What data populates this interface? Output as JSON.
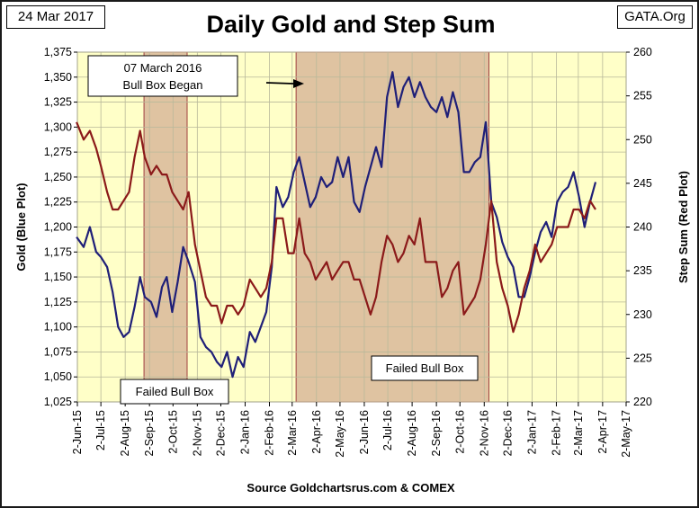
{
  "header": {
    "date": "24 Mar 2017",
    "site": "GATA.Org"
  },
  "chart_data": {
    "type": "line",
    "title": "Daily Gold and Step Sum",
    "source": "Source Goldchartsrus.com & COMEX",
    "xlabel": "",
    "ylabel_left": "Gold   (Blue Plot)",
    "ylabel_right": "Step Sum  (Red Plot)",
    "x_ticks": [
      "2-Jun-15",
      "2-Jul-15",
      "2-Aug-15",
      "2-Sep-15",
      "2-Oct-15",
      "2-Nov-15",
      "2-Dec-15",
      "2-Jan-16",
      "2-Feb-16",
      "2-Mar-16",
      "2-Apr-16",
      "2-May-16",
      "2-Jun-16",
      "2-Jul-16",
      "2-Aug-16",
      "2-Sep-16",
      "2-Oct-16",
      "2-Nov-16",
      "2-Dec-16",
      "2-Jan-17",
      "2-Feb-17",
      "2-Mar-17",
      "2-Apr-17",
      "2-May-17"
    ],
    "ylim_left": [
      1025,
      1375
    ],
    "left_ticks": [
      "1,025",
      "1,050",
      "1,075",
      "1,100",
      "1,125",
      "1,150",
      "1,175",
      "1,200",
      "1,225",
      "1,250",
      "1,275",
      "1,300",
      "1,325",
      "1,350",
      "1,375"
    ],
    "ylim_right": [
      220,
      260
    ],
    "right_ticks": [
      "220",
      "225",
      "230",
      "235",
      "240",
      "245",
      "250",
      "255",
      "260"
    ],
    "grid": true,
    "colors": {
      "plot_bg": "#ffffc8",
      "gold_line": "#1f1f78",
      "step_line": "#8b1a1a",
      "box_fill": "#d9b89a",
      "box_border": "#a04040",
      "grid": "#b8b89a"
    },
    "series": [
      {
        "name": "Gold",
        "axis": "left",
        "x": [
          "2015-06-01",
          "2015-06-10",
          "2015-06-18",
          "2015-06-26",
          "2015-07-02",
          "2015-07-10",
          "2015-07-17",
          "2015-07-24",
          "2015-07-31",
          "2015-08-07",
          "2015-08-14",
          "2015-08-21",
          "2015-08-27",
          "2015-09-04",
          "2015-09-11",
          "2015-09-18",
          "2015-09-24",
          "2015-10-01",
          "2015-10-08",
          "2015-10-15",
          "2015-10-22",
          "2015-10-30",
          "2015-11-06",
          "2015-11-13",
          "2015-11-20",
          "2015-11-27",
          "2015-12-03",
          "2015-12-10",
          "2015-12-17",
          "2015-12-24",
          "2015-12-31",
          "2016-01-08",
          "2016-01-15",
          "2016-01-22",
          "2016-01-29",
          "2016-02-05",
          "2016-02-11",
          "2016-02-19",
          "2016-02-26",
          "2016-03-04",
          "2016-03-11",
          "2016-03-18",
          "2016-03-25",
          "2016-04-01",
          "2016-04-08",
          "2016-04-15",
          "2016-04-22",
          "2016-04-29",
          "2016-05-06",
          "2016-05-13",
          "2016-05-20",
          "2016-05-27",
          "2016-06-03",
          "2016-06-10",
          "2016-06-17",
          "2016-06-24",
          "2016-07-01",
          "2016-07-08",
          "2016-07-15",
          "2016-07-22",
          "2016-07-29",
          "2016-08-05",
          "2016-08-12",
          "2016-08-19",
          "2016-08-26",
          "2016-09-02",
          "2016-09-09",
          "2016-09-16",
          "2016-09-23",
          "2016-09-30",
          "2016-10-07",
          "2016-10-14",
          "2016-10-21",
          "2016-10-28",
          "2016-11-04",
          "2016-11-11",
          "2016-11-18",
          "2016-11-25",
          "2016-12-02",
          "2016-12-09",
          "2016-12-16",
          "2016-12-23",
          "2016-12-30",
          "2017-01-06",
          "2017-01-13",
          "2017-01-20",
          "2017-01-27",
          "2017-02-03",
          "2017-02-10",
          "2017-02-17",
          "2017-02-24",
          "2017-03-03",
          "2017-03-10",
          "2017-03-17",
          "2017-03-24"
        ],
        "values": [
          1190,
          1180,
          1200,
          1175,
          1170,
          1160,
          1135,
          1100,
          1090,
          1095,
          1120,
          1150,
          1130,
          1125,
          1110,
          1140,
          1150,
          1115,
          1145,
          1180,
          1165,
          1145,
          1090,
          1080,
          1075,
          1065,
          1060,
          1075,
          1050,
          1070,
          1060,
          1095,
          1085,
          1100,
          1115,
          1160,
          1240,
          1220,
          1230,
          1255,
          1270,
          1245,
          1220,
          1230,
          1250,
          1240,
          1245,
          1270,
          1250,
          1270,
          1225,
          1215,
          1240,
          1260,
          1280,
          1260,
          1330,
          1355,
          1320,
          1340,
          1350,
          1330,
          1345,
          1330,
          1320,
          1315,
          1330,
          1310,
          1335,
          1315,
          1255,
          1255,
          1265,
          1270,
          1305,
          1225,
          1210,
          1185,
          1170,
          1160,
          1130,
          1130,
          1150,
          1175,
          1195,
          1205,
          1190,
          1225,
          1235,
          1240,
          1255,
          1230,
          1200,
          1225,
          1245
        ]
      },
      {
        "name": "Step Sum",
        "axis": "right",
        "x": [
          "2015-06-01",
          "2015-06-10",
          "2015-06-18",
          "2015-06-26",
          "2015-07-02",
          "2015-07-10",
          "2015-07-17",
          "2015-07-24",
          "2015-07-31",
          "2015-08-07",
          "2015-08-14",
          "2015-08-21",
          "2015-08-27",
          "2015-09-04",
          "2015-09-11",
          "2015-09-18",
          "2015-09-24",
          "2015-10-01",
          "2015-10-08",
          "2015-10-15",
          "2015-10-22",
          "2015-10-30",
          "2015-11-06",
          "2015-11-13",
          "2015-11-20",
          "2015-11-27",
          "2015-12-03",
          "2015-12-10",
          "2015-12-17",
          "2015-12-24",
          "2015-12-31",
          "2016-01-08",
          "2016-01-15",
          "2016-01-22",
          "2016-01-29",
          "2016-02-05",
          "2016-02-11",
          "2016-02-19",
          "2016-02-26",
          "2016-03-04",
          "2016-03-11",
          "2016-03-18",
          "2016-03-25",
          "2016-04-01",
          "2016-04-08",
          "2016-04-15",
          "2016-04-22",
          "2016-04-29",
          "2016-05-06",
          "2016-05-13",
          "2016-05-20",
          "2016-05-27",
          "2016-06-03",
          "2016-06-10",
          "2016-06-17",
          "2016-06-24",
          "2016-07-01",
          "2016-07-08",
          "2016-07-15",
          "2016-07-22",
          "2016-07-29",
          "2016-08-05",
          "2016-08-12",
          "2016-08-19",
          "2016-08-26",
          "2016-09-02",
          "2016-09-09",
          "2016-09-16",
          "2016-09-23",
          "2016-09-30",
          "2016-10-07",
          "2016-10-14",
          "2016-10-21",
          "2016-10-28",
          "2016-11-04",
          "2016-11-11",
          "2016-11-18",
          "2016-11-25",
          "2016-12-02",
          "2016-12-09",
          "2016-12-16",
          "2016-12-23",
          "2016-12-30",
          "2017-01-06",
          "2017-01-13",
          "2017-01-20",
          "2017-01-27",
          "2017-02-03",
          "2017-02-10",
          "2017-02-17",
          "2017-02-24",
          "2017-03-03",
          "2017-03-10",
          "2017-03-17",
          "2017-03-24"
        ],
        "values": [
          252,
          250,
          251,
          249,
          247,
          244,
          242,
          242,
          243,
          244,
          248,
          251,
          248,
          246,
          247,
          246,
          246,
          244,
          243,
          242,
          244,
          238,
          235,
          232,
          231,
          231,
          229,
          231,
          231,
          230,
          231,
          234,
          233,
          232,
          233,
          236,
          241,
          241,
          237,
          237,
          241,
          237,
          236,
          234,
          235,
          236,
          234,
          235,
          236,
          236,
          234,
          234,
          232,
          230,
          232,
          236,
          239,
          238,
          236,
          237,
          239,
          238,
          241,
          236,
          236,
          236,
          232,
          233,
          235,
          236,
          230,
          231,
          232,
          234,
          238,
          243,
          236,
          233,
          231,
          228,
          230,
          233,
          235,
          238,
          236,
          237,
          238,
          240,
          240,
          240,
          242,
          242,
          241,
          243,
          242
        ]
      }
    ],
    "shaded_regions": [
      {
        "start": "2015-08-26",
        "end": "2015-10-20",
        "label": "Failed Bull Box"
      },
      {
        "start": "2016-03-07",
        "end": "2016-11-08",
        "label": "Failed Bull Box"
      }
    ],
    "annotations": [
      {
        "text_line1": "07 March 2016",
        "text_line2": "Bull Box Began"
      }
    ]
  }
}
